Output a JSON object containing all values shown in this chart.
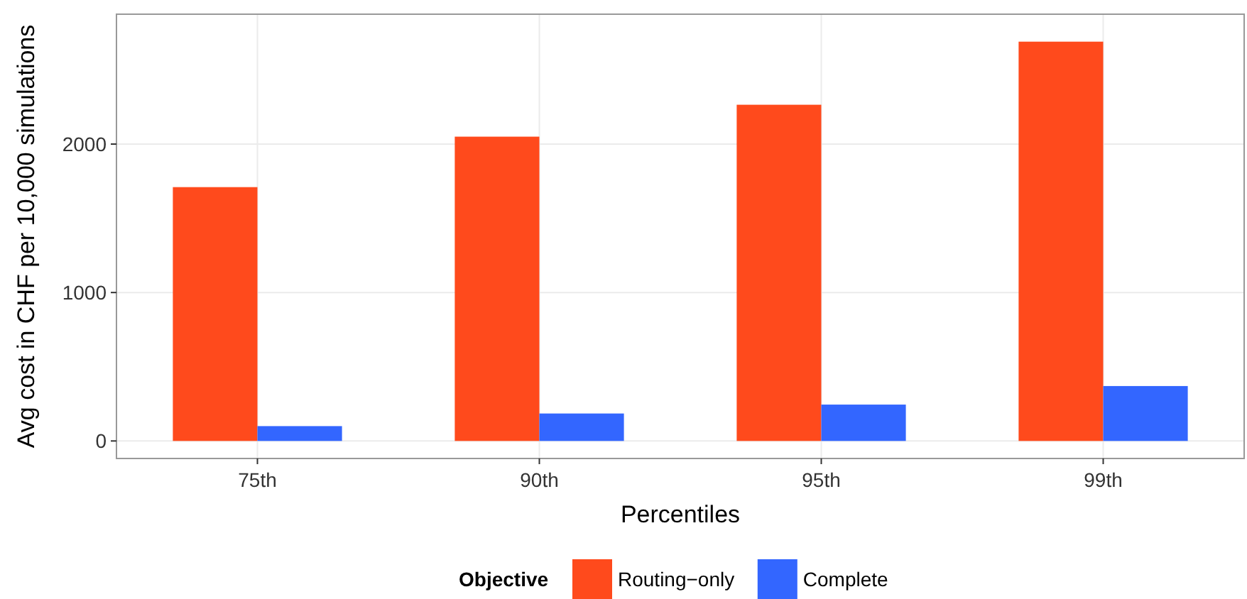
{
  "chart_data": {
    "type": "bar",
    "xlabel": "Percentiles",
    "ylabel": "Avg cost in CHF per 10,000 simulations",
    "legend_title": "Objective",
    "categories": [
      "75th",
      "90th",
      "95th",
      "99th"
    ],
    "series": [
      {
        "name": "Routing−only",
        "color": "#ff4a1c",
        "values": [
          1710,
          2050,
          2265,
          2690
        ]
      },
      {
        "name": "Complete",
        "color": "#3366ff",
        "values": [
          100,
          185,
          245,
          370
        ]
      }
    ],
    "ylim": [
      -118,
      2875
    ],
    "yticks": [
      0,
      1000,
      2000
    ],
    "grid": true,
    "legend": "bottom"
  }
}
